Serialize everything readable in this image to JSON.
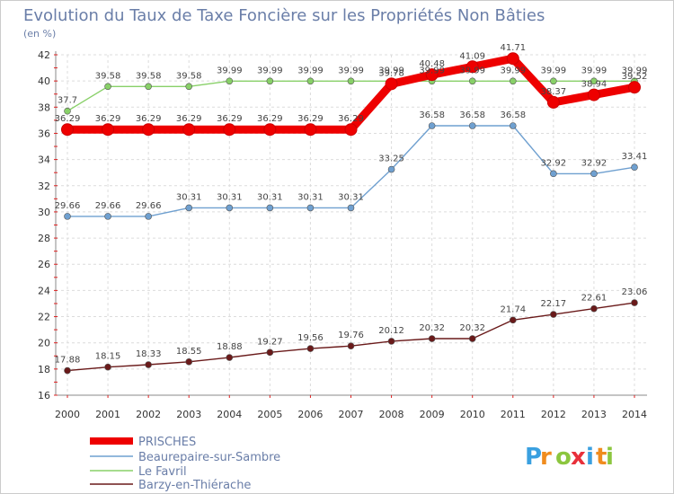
{
  "chart_data": {
    "type": "line",
    "title": "Evolution du Taux de Taxe Foncière sur les Propriétés Non Bâties",
    "subtitle": "(en %)",
    "x": [
      "2000",
      "2001",
      "2002",
      "2003",
      "2004",
      "2005",
      "2006",
      "2007",
      "2008",
      "2009",
      "2010",
      "2011",
      "2012",
      "2013",
      "2014"
    ],
    "ylim": [
      16,
      42
    ],
    "yticks": [
      16,
      18,
      20,
      22,
      24,
      26,
      28,
      30,
      32,
      34,
      36,
      38,
      40,
      42
    ],
    "grid": true,
    "legend_position": "bottom-left",
    "series": [
      {
        "name": "PRISCHES",
        "color": "#ee0000",
        "values": [
          36.29,
          36.29,
          36.29,
          36.29,
          36.29,
          36.29,
          36.29,
          36.29,
          39.78,
          40.48,
          41.09,
          41.71,
          38.37,
          38.94,
          39.52
        ],
        "labels": [
          "36.29",
          "36.29",
          "36.29",
          "36.29",
          "36.29",
          "36.29",
          "36.29",
          "36.29",
          "39.78",
          "40.48",
          "41.09",
          "41.71",
          "38.37",
          "38.94",
          "39.52"
        ]
      },
      {
        "name": "Beaurepaire-sur-Sambre",
        "color": "#6fa0d0",
        "values": [
          29.66,
          29.66,
          29.66,
          30.31,
          30.31,
          30.31,
          30.31,
          30.31,
          33.25,
          36.58,
          36.58,
          36.58,
          32.92,
          32.92,
          33.41
        ],
        "labels": [
          "29.66",
          "29.66",
          "29.66",
          "30.31",
          "30.31",
          "30.31",
          "30.31",
          "30.31",
          "33.25",
          "36.58",
          "36.58",
          "36.58",
          "32.92",
          "32.92",
          "33.41"
        ]
      },
      {
        "name": "Le Favril",
        "color": "#88d068",
        "values": [
          37.7,
          39.58,
          39.58,
          39.58,
          39.99,
          39.99,
          39.99,
          39.99,
          39.99,
          39.99,
          39.99,
          39.99,
          39.99,
          39.99,
          39.99
        ],
        "labels": [
          "37.7",
          "39.58",
          "39.58",
          "39.58",
          "39.99",
          "39.99",
          "39.99",
          "39.99",
          "39.99",
          "39.99",
          "39.99",
          "39.99",
          "39.99",
          "39.99",
          "39.99"
        ]
      },
      {
        "name": "Barzy-en-Thiérache",
        "color": "#6a1a1a",
        "values": [
          17.88,
          18.15,
          18.33,
          18.55,
          18.88,
          19.27,
          19.56,
          19.76,
          20.12,
          20.32,
          20.32,
          21.74,
          22.17,
          22.61,
          23.06
        ],
        "labels": [
          "17.88",
          "18.15",
          "18.33",
          "18.55",
          "18.88",
          "19.27",
          "19.56",
          "19.76",
          "20.12",
          "20.32",
          "20.32",
          "21.74",
          "22.17",
          "22.61",
          "23.06"
        ]
      }
    ]
  },
  "logo": {
    "letters": [
      "P",
      "r",
      "o",
      "x",
      "i",
      "t",
      "i"
    ],
    "colors": [
      "#3aa0e0",
      "#f08c1e",
      "#8cc63f",
      "#e8303a",
      "#3aa0e0",
      "#f08c1e",
      "#8cc63f"
    ]
  }
}
